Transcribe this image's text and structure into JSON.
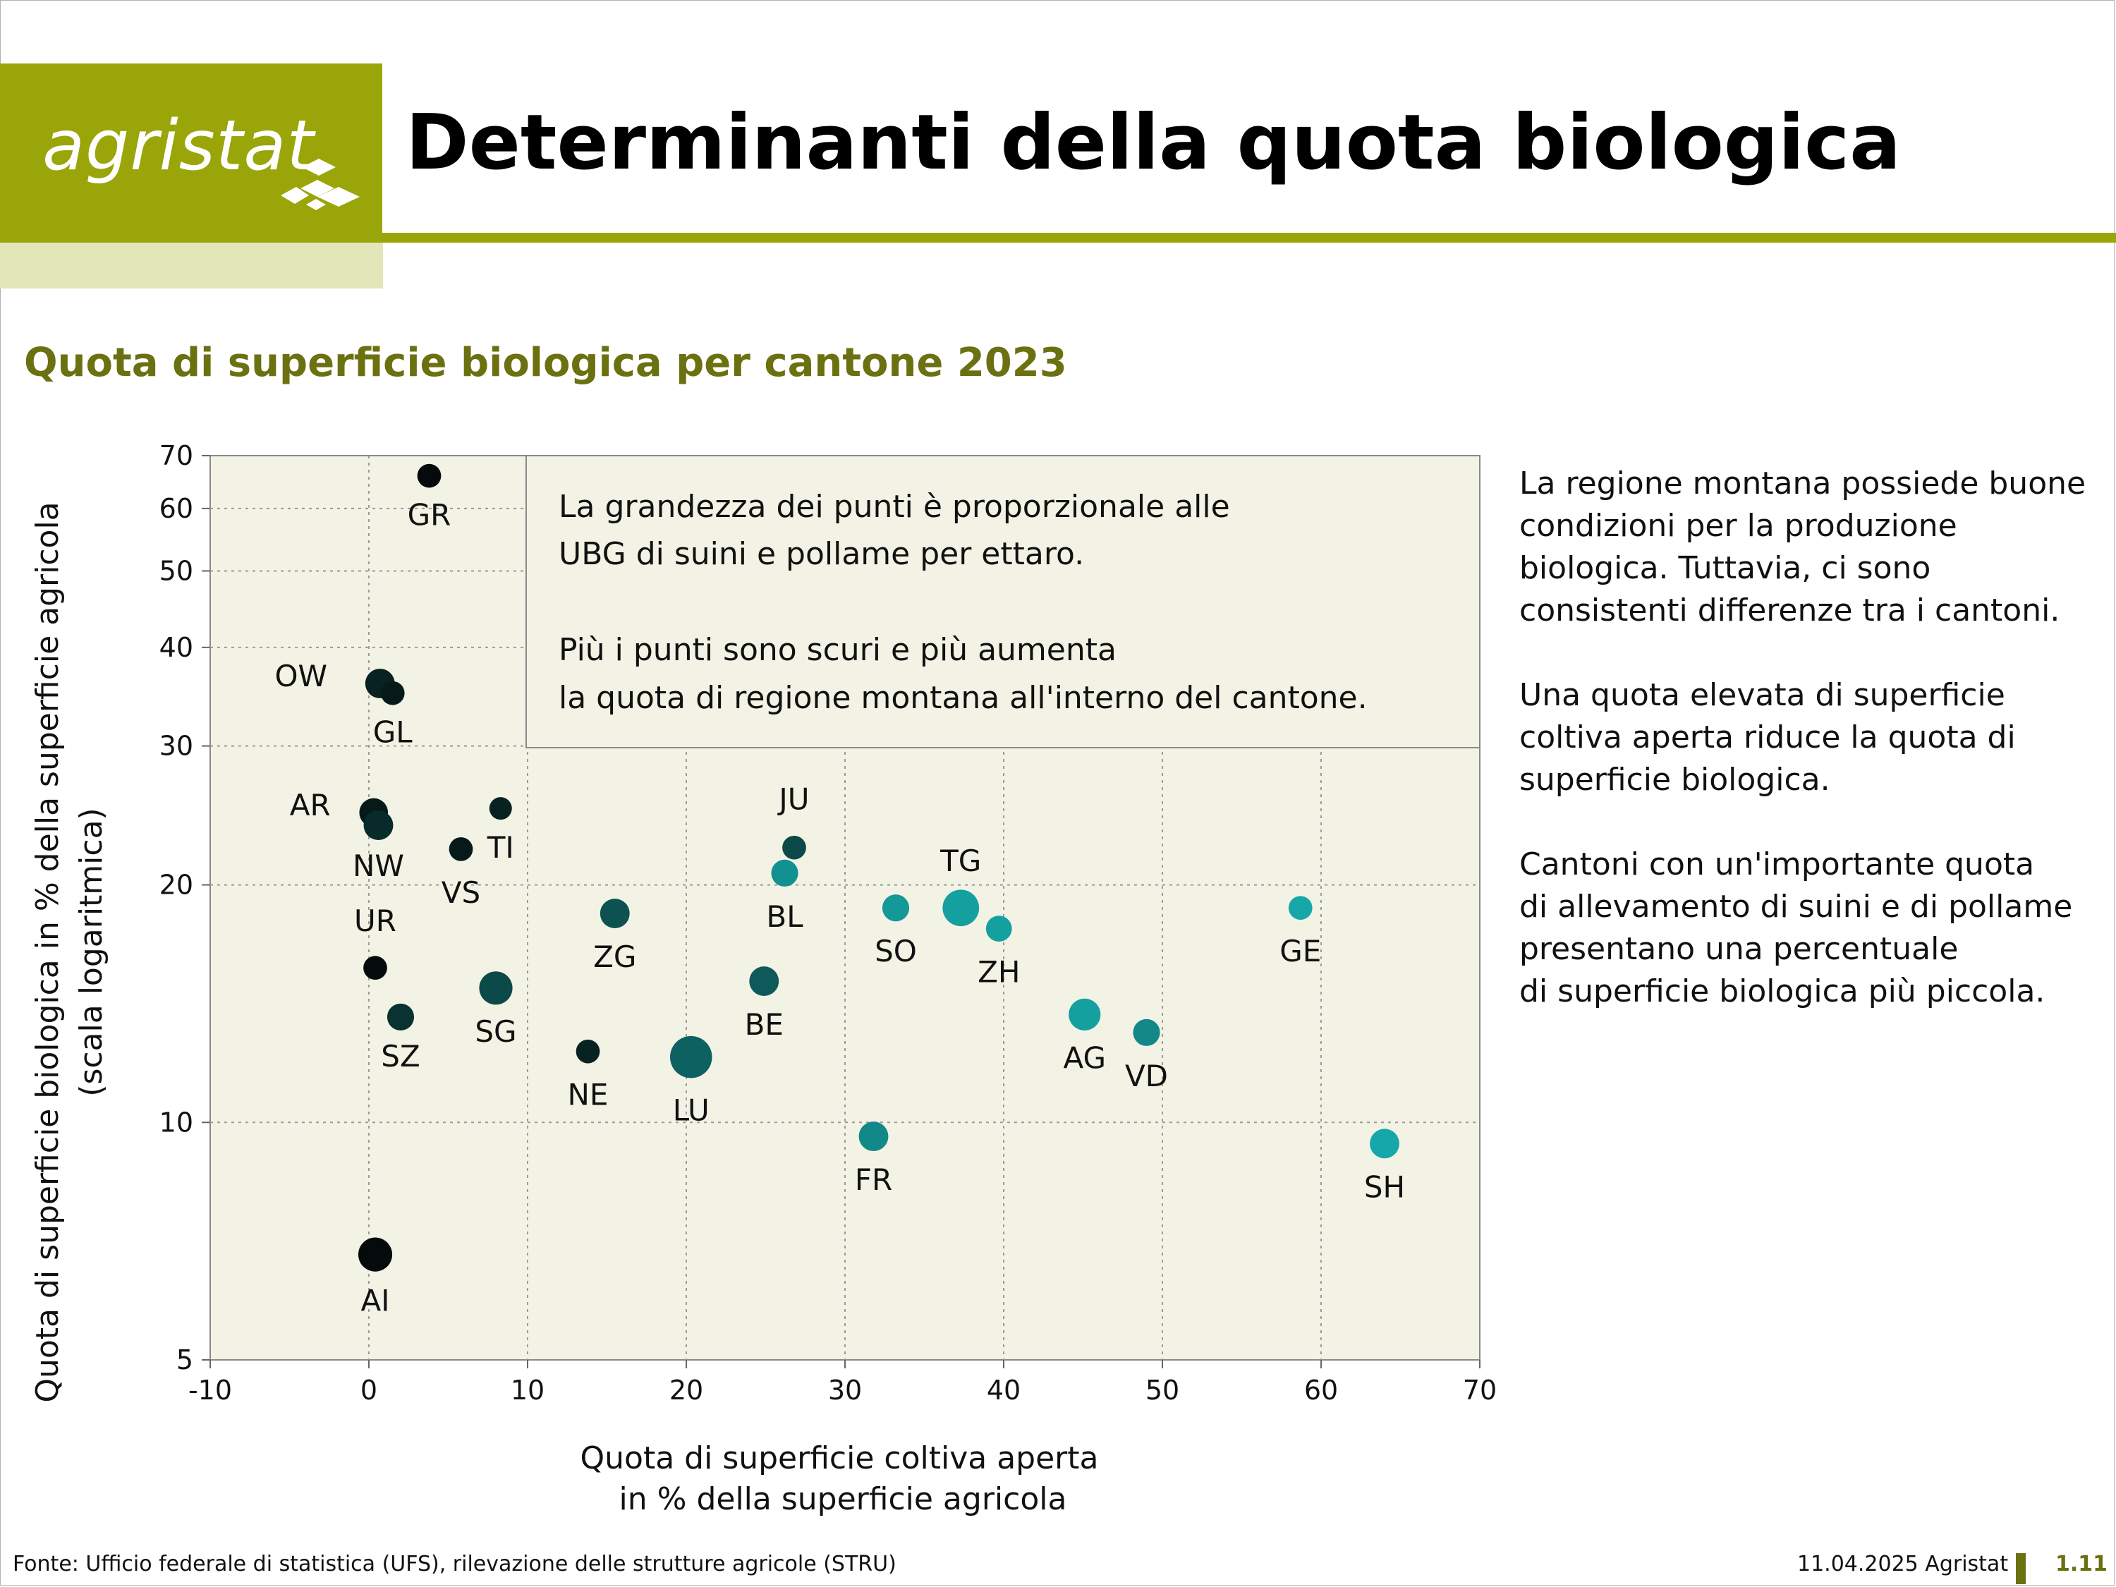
{
  "header": {
    "logo_text": "agristat",
    "title": "Determinanti della quota biologica"
  },
  "subtitle": "Quota di superficie biologica per cantone 2023",
  "note": {
    "line1": "La grandezza dei punti è proporzionale alle",
    "line2": "UBG di suini e pollame per ettaro.",
    "line3": "Più i punti sono scuri e più aumenta",
    "line4": "la quota di regione montana all'interno del cantone."
  },
  "side_text": [
    "La regione montana possiede buone\ncondizioni per la produzione\nbiologica. Tuttavia, ci sono\nconsistenti differenze tra i cantoni.",
    "Una quota elevata di superficie\ncoltiva aperta riduce la quota di\nsuperficie biologica.",
    "Cantoni con un'importante quota\ndi allevamento di suini e di pollame\npresentano una percentuale\ndi superficie biologica più piccola."
  ],
  "footer": {
    "source": "Fonte: Ufficio federale di statistica (UFS), rilevazione delle strutture agricole (STRU)",
    "date": "11.04.2025 Agristat",
    "page": "1.11"
  },
  "colors": {
    "brand": "#9aa50a",
    "brand_light": "#e3e6b8",
    "subtitle": "#6b7110",
    "plot_bg": "#f3f3e5"
  },
  "chart_data": {
    "type": "scatter",
    "title": "Quota di superficie biologica per cantone 2023",
    "xlabel_line1": "Quota di superficie coltiva aperta",
    "xlabel_line2": "in % della superficie agricola",
    "ylabel_line1": "Quota di superficie biologica in % della superficie agricola",
    "ylabel_line2": "(scala logaritmica)",
    "xlim": [
      -10,
      70
    ],
    "ylim": [
      5,
      70
    ],
    "y_scale": "log",
    "xticks": [
      -10,
      0,
      10,
      20,
      30,
      40,
      50,
      60,
      70
    ],
    "yticks": [
      5,
      10,
      20,
      30,
      40,
      50,
      60,
      70
    ],
    "grid": true,
    "points": [
      {
        "label": "GR",
        "x": 3.8,
        "y": 66,
        "size": 0.3,
        "mountain": 1.0
      },
      {
        "label": "OW",
        "x": 0.7,
        "y": 36,
        "size": 0.6,
        "mountain": 0.85
      },
      {
        "label": "GL",
        "x": 1.5,
        "y": 35,
        "size": 0.3,
        "mountain": 0.9
      },
      {
        "label": "AR",
        "x": 0.3,
        "y": 24.7,
        "size": 0.55,
        "mountain": 0.9
      },
      {
        "label": "NW",
        "x": 0.6,
        "y": 23.8,
        "size": 0.6,
        "mountain": 0.8
      },
      {
        "label": "TI",
        "x": 8.3,
        "y": 25,
        "size": 0.25,
        "mountain": 0.85
      },
      {
        "label": "VS",
        "x": 5.8,
        "y": 22.2,
        "size": 0.3,
        "mountain": 0.9
      },
      {
        "label": "UR",
        "x": 0.4,
        "y": 15.7,
        "size": 0.3,
        "mountain": 1.0
      },
      {
        "label": "SZ",
        "x": 2.0,
        "y": 13.6,
        "size": 0.45,
        "mountain": 0.75
      },
      {
        "label": "SG",
        "x": 8.0,
        "y": 14.8,
        "size": 0.85,
        "mountain": 0.6
      },
      {
        "label": "ZG",
        "x": 15.5,
        "y": 18.4,
        "size": 0.6,
        "mountain": 0.55
      },
      {
        "label": "NE",
        "x": 13.8,
        "y": 12.3,
        "size": 0.3,
        "mountain": 0.85
      },
      {
        "label": "LU",
        "x": 20.3,
        "y": 12.1,
        "size": 1.6,
        "mountain": 0.45
      },
      {
        "label": "JU",
        "x": 26.8,
        "y": 22.3,
        "size": 0.3,
        "mountain": 0.6
      },
      {
        "label": "BL",
        "x": 26.2,
        "y": 20.7,
        "size": 0.45,
        "mountain": 0.15
      },
      {
        "label": "BE",
        "x": 24.9,
        "y": 15.1,
        "size": 0.6,
        "mountain": 0.5
      },
      {
        "label": "FR",
        "x": 31.8,
        "y": 9.6,
        "size": 0.6,
        "mountain": 0.2
      },
      {
        "label": "SO",
        "x": 33.2,
        "y": 18.7,
        "size": 0.45,
        "mountain": 0.1
      },
      {
        "label": "TG",
        "x": 37.3,
        "y": 18.7,
        "size": 1.1,
        "mountain": 0.05
      },
      {
        "label": "ZH",
        "x": 39.7,
        "y": 17.6,
        "size": 0.4,
        "mountain": 0.05
      },
      {
        "label": "AG",
        "x": 45.1,
        "y": 13.7,
        "size": 0.75,
        "mountain": 0.05
      },
      {
        "label": "VD",
        "x": 49.0,
        "y": 13.0,
        "size": 0.45,
        "mountain": 0.2
      },
      {
        "label": "GE",
        "x": 58.7,
        "y": 18.7,
        "size": 0.3,
        "mountain": 0.0
      },
      {
        "label": "SH",
        "x": 64.0,
        "y": 9.4,
        "size": 0.6,
        "mountain": 0.0
      },
      {
        "label": "AI",
        "x": 0.4,
        "y": 6.8,
        "size": 0.9,
        "mountain": 1.0
      }
    ]
  }
}
